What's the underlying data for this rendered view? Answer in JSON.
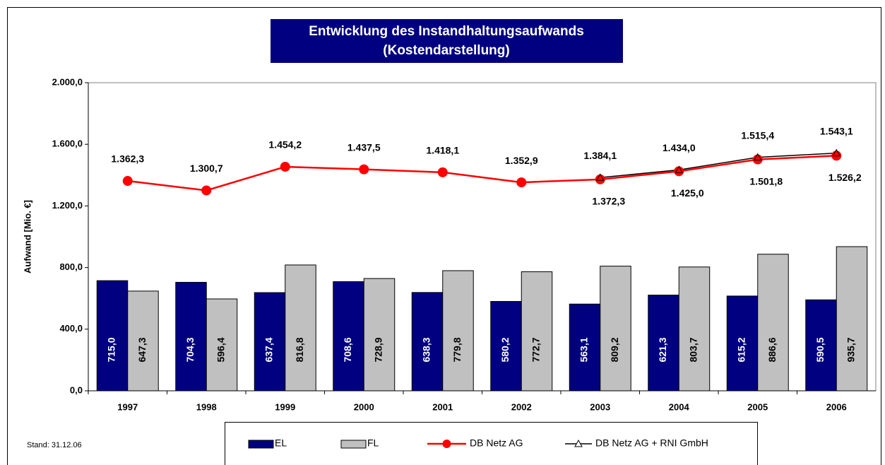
{
  "chart_data": {
    "type": "bar",
    "title": "Entwicklung des Instandhaltungsaufwands",
    "subtitle": "(Kostendarstellung)",
    "y_label": "Aufwand [Mio. €]",
    "footnote": "Stand: 31.12.06",
    "categories": [
      "1997",
      "1998",
      "1999",
      "2000",
      "2001",
      "2002",
      "2003",
      "2004",
      "2005",
      "2006"
    ],
    "series": [
      {
        "name": "EL",
        "type": "bar",
        "color": "#000080",
        "values": [
          715.0,
          704.3,
          637.4,
          708.6,
          638.3,
          580.2,
          563.1,
          621.3,
          615.2,
          590.5
        ],
        "value_labels": [
          "715,0",
          "704,3",
          "637,4",
          "708,6",
          "638,3",
          "580,2",
          "563,1",
          "621,3",
          "615,2",
          "590,5"
        ]
      },
      {
        "name": "FL",
        "type": "bar",
        "color": "#c0c0c0",
        "values": [
          647.3,
          596.4,
          816.8,
          728.9,
          779.8,
          772.7,
          809.2,
          803.7,
          886.6,
          935.7
        ],
        "value_labels": [
          "647,3",
          "596,4",
          "816,8",
          "728,9",
          "779,8",
          "772,7",
          "809,2",
          "803,7",
          "886,6",
          "935,7"
        ]
      },
      {
        "name": "DB Netz AG",
        "type": "line",
        "marker": "circle",
        "color": "#ff0000",
        "values": [
          1362.3,
          1300.7,
          1454.2,
          1437.5,
          1418.1,
          1352.9,
          1372.3,
          1425.0,
          1501.8,
          1526.2
        ],
        "value_labels": [
          "1.362,3",
          "1.300,7",
          "1.454,2",
          "1.437,5",
          "1.418,1",
          "1.352,9",
          "1.372,3",
          "1.425,0",
          "1.501,8",
          "1.526,2"
        ]
      },
      {
        "name": "DB Netz AG + RNI GmbH",
        "type": "line",
        "marker": "triangle",
        "color": "#000000",
        "values": [
          null,
          null,
          null,
          null,
          null,
          null,
          1384.1,
          1434.0,
          1515.4,
          1543.1
        ],
        "value_labels": [
          null,
          null,
          null,
          null,
          null,
          null,
          "1.384,1",
          "1.434,0",
          "1.515,4",
          "1.543,1"
        ]
      }
    ],
    "ylim": [
      0,
      2000
    ],
    "yticks": [
      {
        "value": 0,
        "label": "0,0"
      },
      {
        "value": 400,
        "label": "400,0"
      },
      {
        "value": 800,
        "label": "800,0"
      },
      {
        "value": 1200,
        "label": "1.200,0"
      },
      {
        "value": 1600,
        "label": "1.600,0"
      },
      {
        "value": 2000,
        "label": "2.000,0"
      }
    ]
  }
}
